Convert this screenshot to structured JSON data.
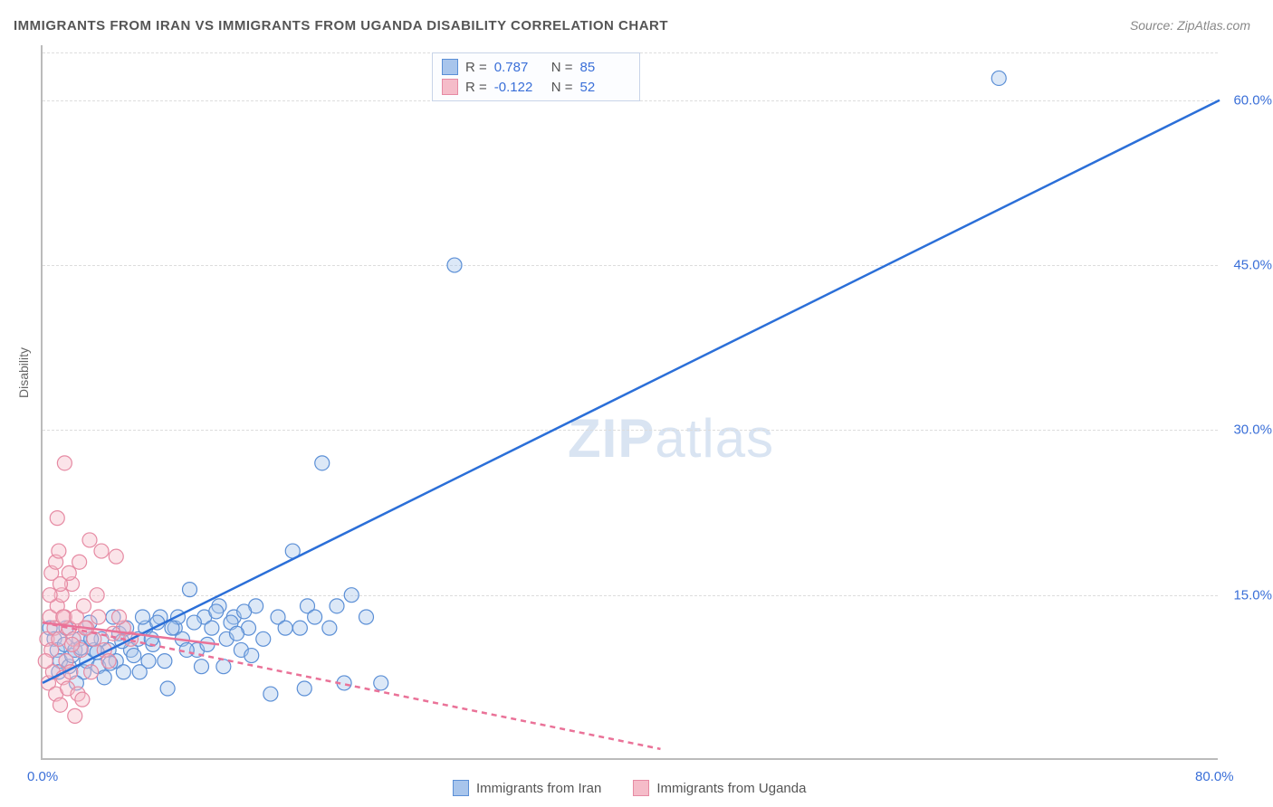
{
  "title": "IMMIGRANTS FROM IRAN VS IMMIGRANTS FROM UGANDA DISABILITY CORRELATION CHART",
  "source": "Source: ZipAtlas.com",
  "ylabel": "Disability",
  "watermark_bold": "ZIP",
  "watermark_light": "atlas",
  "chart": {
    "type": "scatter",
    "xlim": [
      0,
      80
    ],
    "ylim": [
      0,
      65
    ],
    "x_ticks": [
      {
        "val": 0,
        "label": "0.0%"
      },
      {
        "val": 80,
        "label": "80.0%"
      }
    ],
    "y_ticks": [
      {
        "val": 15,
        "label": "15.0%"
      },
      {
        "val": 30,
        "label": "30.0%"
      },
      {
        "val": 45,
        "label": "45.0%"
      },
      {
        "val": 60,
        "label": "60.0%"
      }
    ],
    "grid_color": "#dddddd",
    "background_color": "#ffffff",
    "marker_radius": 8,
    "marker_opacity": 0.4,
    "line_width": 2.5,
    "series": [
      {
        "name": "Immigrants from Iran",
        "fill": "#a8c5ec",
        "stroke": "#5b8fd6",
        "line_color": "#2b6fd8",
        "R_label": "R =",
        "R": "0.787",
        "N_label": "N =",
        "N": "85",
        "trend": {
          "x1": 0,
          "y1": 7,
          "x2": 80,
          "y2": 60,
          "dash": "none"
        },
        "points": [
          [
            0.5,
            12
          ],
          [
            0.8,
            11
          ],
          [
            1,
            10
          ],
          [
            1.2,
            9
          ],
          [
            1.5,
            10.5
          ],
          [
            1.8,
            8.5
          ],
          [
            2,
            9.5
          ],
          [
            2.2,
            10
          ],
          [
            2.5,
            11
          ],
          [
            2.8,
            8
          ],
          [
            3,
            9
          ],
          [
            3.5,
            10
          ],
          [
            3.8,
            8.5
          ],
          [
            4,
            11
          ],
          [
            4.2,
            7.5
          ],
          [
            4.5,
            10
          ],
          [
            5,
            9
          ],
          [
            5.2,
            11.5
          ],
          [
            5.5,
            8
          ],
          [
            6,
            10
          ],
          [
            6.5,
            11
          ],
          [
            7,
            12
          ],
          [
            7.2,
            9
          ],
          [
            7.5,
            10.5
          ],
          [
            8,
            13
          ],
          [
            8.5,
            6.5
          ],
          [
            9,
            12
          ],
          [
            9.5,
            11
          ],
          [
            10,
            15.5
          ],
          [
            10.5,
            10
          ],
          [
            11,
            13
          ],
          [
            11.5,
            12
          ],
          [
            12,
            14
          ],
          [
            12.5,
            11
          ],
          [
            13,
            13
          ],
          [
            13.5,
            10
          ],
          [
            14,
            12
          ],
          [
            14.5,
            14
          ],
          [
            15,
            11
          ],
          [
            15.5,
            6
          ],
          [
            16,
            13
          ],
          [
            17,
            19
          ],
          [
            17.5,
            12
          ],
          [
            18,
            14
          ],
          [
            19,
            27
          ],
          [
            20,
            14
          ],
          [
            20.5,
            7
          ],
          [
            21,
            15
          ],
          [
            22,
            13
          ],
          [
            23,
            7
          ],
          [
            28,
            45
          ],
          [
            65,
            62
          ],
          [
            3.2,
            12.5
          ],
          [
            4.8,
            13
          ],
          [
            6.2,
            9.5
          ],
          [
            7.8,
            12.5
          ],
          [
            2.3,
            7
          ],
          [
            1.6,
            12
          ],
          [
            3.7,
            9.8
          ],
          [
            5.7,
            12
          ],
          [
            6.8,
            13
          ],
          [
            8.3,
            9
          ],
          [
            9.2,
            13
          ],
          [
            10.8,
            8.5
          ],
          [
            11.2,
            10.5
          ],
          [
            12.8,
            12.5
          ],
          [
            13.7,
            13.5
          ],
          [
            14.2,
            9.5
          ],
          [
            16.5,
            12
          ],
          [
            17.8,
            6.5
          ],
          [
            18.5,
            13
          ],
          [
            19.5,
            12
          ],
          [
            1.1,
            8
          ],
          [
            2.6,
            10.2
          ],
          [
            3.3,
            11
          ],
          [
            4.6,
            8.8
          ],
          [
            5.4,
            10.8
          ],
          [
            6.6,
            8
          ],
          [
            7.4,
            11
          ],
          [
            8.8,
            12
          ],
          [
            9.8,
            10
          ],
          [
            10.3,
            12.5
          ],
          [
            11.8,
            13.5
          ],
          [
            12.3,
            8.5
          ],
          [
            13.2,
            11.5
          ]
        ]
      },
      {
        "name": "Immigrants from Uganda",
        "fill": "#f5bcc9",
        "stroke": "#e68aa3",
        "line_color": "#ea7298",
        "R_label": "R =",
        "R": "-0.122",
        "N_label": "N =",
        "N": "52",
        "trend": {
          "x1": 0,
          "y1": 12.5,
          "x2": 42,
          "y2": 1,
          "dash": "6,5"
        },
        "trend_solid": {
          "x1": 0,
          "y1": 12.5,
          "x2": 12,
          "y2": 10.5
        },
        "points": [
          [
            0.3,
            11
          ],
          [
            0.5,
            13
          ],
          [
            0.6,
            10
          ],
          [
            0.8,
            12
          ],
          [
            1,
            14
          ],
          [
            1.1,
            11
          ],
          [
            1.3,
            15
          ],
          [
            1.5,
            13
          ],
          [
            1.6,
            9
          ],
          [
            1.8,
            12
          ],
          [
            2,
            16
          ],
          [
            2.1,
            11
          ],
          [
            2.3,
            13
          ],
          [
            2.5,
            18
          ],
          [
            2.6,
            10
          ],
          [
            2.8,
            14
          ],
          [
            3,
            12
          ],
          [
            3.2,
            20
          ],
          [
            3.5,
            11
          ],
          [
            3.7,
            15
          ],
          [
            0.4,
            7
          ],
          [
            0.7,
            8
          ],
          [
            0.9,
            6
          ],
          [
            1.2,
            5
          ],
          [
            1.4,
            7.5
          ],
          [
            1.7,
            6.5
          ],
          [
            1.9,
            8
          ],
          [
            2.2,
            4
          ],
          [
            2.4,
            6
          ],
          [
            2.7,
            5.5
          ],
          [
            0.2,
            9
          ],
          [
            0.6,
            17
          ],
          [
            1.0,
            22
          ],
          [
            1.5,
            27
          ],
          [
            4,
            19
          ],
          [
            5,
            18.5
          ],
          [
            5.5,
            12
          ],
          [
            6,
            11
          ],
          [
            3.3,
            8
          ],
          [
            3.8,
            13
          ],
          [
            4.2,
            10
          ],
          [
            4.5,
            9
          ],
          [
            4.8,
            11.5
          ],
          [
            5.2,
            13
          ],
          [
            1.2,
            16
          ],
          [
            1.8,
            17
          ],
          [
            2.9,
            12
          ],
          [
            0.5,
            15
          ],
          [
            0.9,
            18
          ],
          [
            1.1,
            19
          ],
          [
            1.4,
            13
          ],
          [
            2.0,
            10.5
          ]
        ]
      }
    ]
  }
}
